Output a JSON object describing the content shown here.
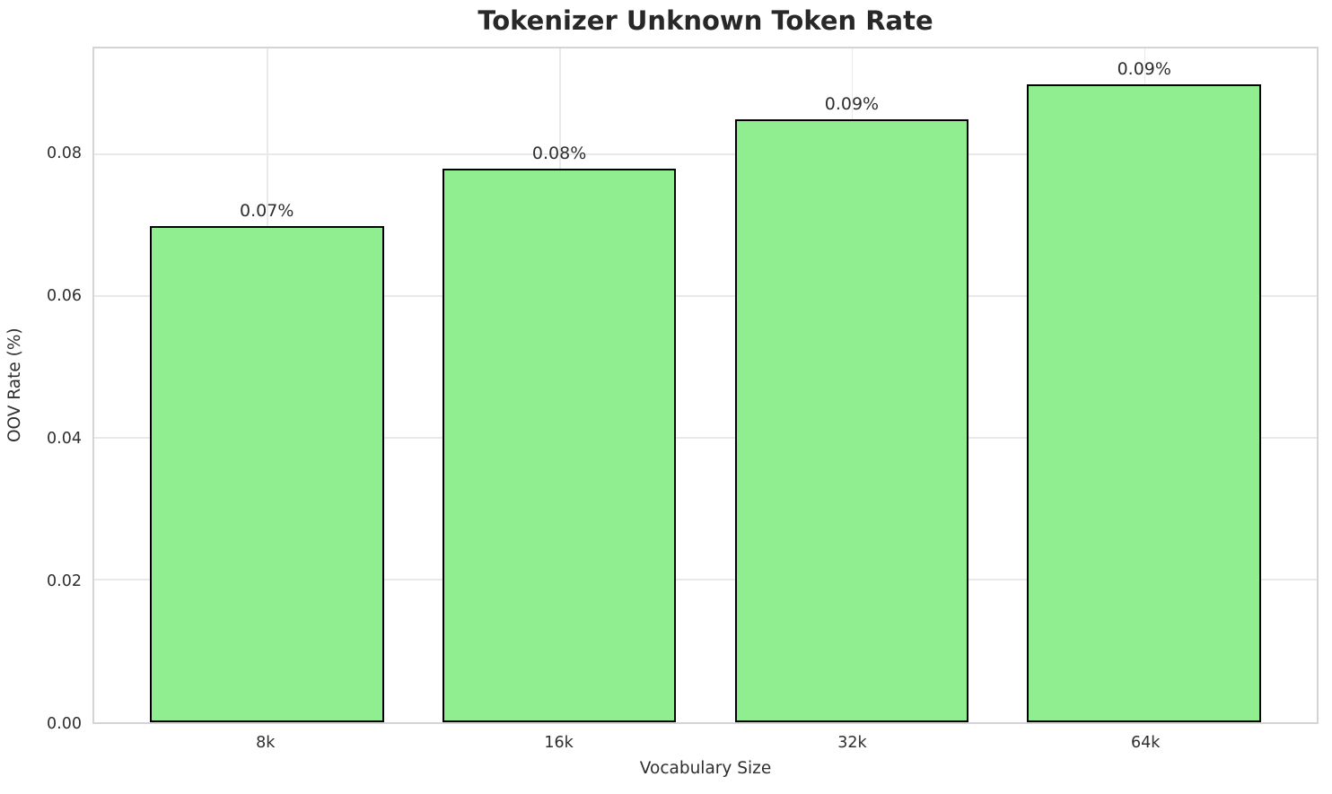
{
  "chart_data": {
    "type": "bar",
    "title": "Tokenizer Unknown Token Rate",
    "xlabel": "Vocabulary Size",
    "ylabel": "OOV Rate (%)",
    "categories": [
      "8k",
      "16k",
      "32k",
      "64k"
    ],
    "values": [
      0.07,
      0.078,
      0.085,
      0.09
    ],
    "bar_labels": [
      "0.07%",
      "0.08%",
      "0.09%",
      "0.09%"
    ],
    "yticks": [
      0,
      0.02,
      0.04,
      0.06,
      0.08
    ],
    "ytick_labels": [
      "0.00",
      "0.02",
      "0.04",
      "0.06",
      "0.08"
    ],
    "ylim": [
      0,
      0.095
    ],
    "x_pad": 0.59,
    "bar_width_fraction": 0.8,
    "grid": "both",
    "legend": "none",
    "bar_color": "#90EE90",
    "bar_edge_color": "#000000",
    "grid_color": "#e9e9e9",
    "spine_color": "#d4d4d4",
    "text_color": "#2e2e2e"
  }
}
